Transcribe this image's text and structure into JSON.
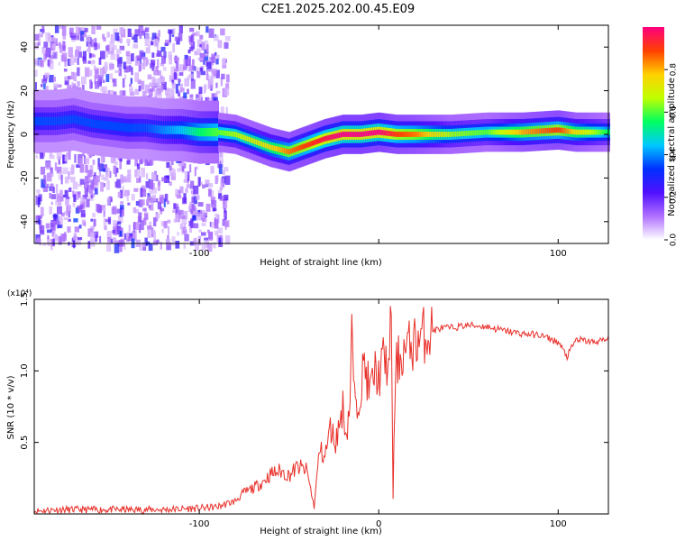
{
  "figure_title": "C2E1.2025.202.00.45.E09",
  "colors": {
    "line": "#e8302a",
    "axis": "#000000",
    "background": "#ffffff",
    "spectrogram_bg": "#ffffff"
  },
  "chart_data": [
    {
      "type": "heatmap",
      "title": "C2E1.2025.202.00.45.E09",
      "xlabel": "Height of straight line (km)",
      "ylabel": "Frequency (Hz)",
      "xlim": [
        -192,
        128
      ],
      "ylim": [
        -50,
        50
      ],
      "x_ticks": [
        -100,
        0,
        100
      ],
      "x_tick_labels": [
        "-100",
        "",
        "100"
      ],
      "y_ticks": [
        -40,
        -20,
        0,
        20,
        40
      ],
      "y_tick_labels": [
        "-40",
        "-20",
        "0",
        "20",
        "40"
      ],
      "colorbar": {
        "label": "Normalized spectral amplitude",
        "range": [
          0,
          1
        ],
        "ticks": [
          0.0,
          0.2,
          0.4,
          0.6,
          0.8
        ],
        "tick_labels": [
          "0.0",
          "0.2",
          "0.4",
          "0.6",
          "0.8"
        ],
        "colormap": [
          "#ffffff",
          "#b070ff",
          "#5010ff",
          "#0030ff",
          "#00c8ff",
          "#00ff60",
          "#c0ff00",
          "#ffd000",
          "#ff4000",
          "#ff0080"
        ]
      },
      "ridge": {
        "x": [
          -190,
          -180,
          -170,
          -160,
          -150,
          -140,
          -130,
          -120,
          -110,
          -100,
          -90,
          -80,
          -70,
          -60,
          -50,
          -40,
          -30,
          -20,
          -10,
          0,
          10,
          20,
          40,
          60,
          80,
          100,
          110,
          120,
          128
        ],
        "frequency": [
          6,
          6,
          7,
          5,
          4,
          3,
          3,
          2,
          2,
          1,
          1,
          0,
          -3,
          -6,
          -8,
          -5,
          -2,
          0,
          0,
          1,
          0,
          0,
          0,
          1,
          1,
          2,
          1,
          1,
          1
        ],
        "amplitude": [
          0.3,
          0.3,
          0.3,
          0.3,
          0.3,
          0.3,
          0.3,
          0.35,
          0.4,
          0.5,
          0.55,
          0.6,
          0.65,
          0.7,
          0.8,
          0.85,
          0.9,
          0.95,
          0.95,
          0.95,
          0.85,
          0.8,
          0.6,
          0.55,
          0.75,
          0.85,
          0.7,
          0.6,
          0.5
        ]
      },
      "noise_region_xlim": [
        -192,
        -85
      ]
    },
    {
      "type": "line",
      "xlabel": "Height of straight line (km)",
      "ylabel": "SNR (10 * v/v)",
      "y_multiplier": "(x10⁴)",
      "xlim": [
        -192,
        128
      ],
      "ylim": [
        0,
        1.5
      ],
      "x_ticks": [
        -100,
        0,
        100
      ],
      "x_tick_labels": [
        "-100",
        "0",
        "100"
      ],
      "y_ticks": [
        0.5,
        1.0,
        1.5
      ],
      "y_tick_labels": [
        "0.5",
        "1.0",
        "1.5"
      ],
      "series": [
        {
          "x": [
            -192,
            -180,
            -160,
            -140,
            -120,
            -100,
            -90,
            -80,
            -75,
            -70,
            -65,
            -60,
            -55,
            -50,
            -45,
            -40,
            -36,
            -33,
            -30,
            -27,
            -24,
            -20,
            -18,
            -16,
            -15,
            -13,
            -10,
            -8,
            -5,
            -2,
            0,
            3,
            6,
            7,
            8,
            9,
            10,
            12,
            15,
            20,
            25,
            30,
            35,
            40,
            50,
            60,
            70,
            80,
            90,
            100,
            105,
            110,
            120,
            128
          ],
          "y": [
            0.02,
            0.03,
            0.03,
            0.03,
            0.03,
            0.04,
            0.05,
            0.09,
            0.15,
            0.18,
            0.22,
            0.28,
            0.3,
            0.27,
            0.33,
            0.3,
            0.05,
            0.45,
            0.4,
            0.6,
            0.5,
            0.75,
            0.55,
            0.8,
            1.25,
            0.7,
            0.9,
            1.05,
            0.85,
            1.0,
            0.95,
            1.1,
            1.0,
            1.5,
            0.12,
            0.8,
            1.05,
            1.1,
            1.15,
            1.2,
            1.25,
            1.28,
            1.3,
            1.3,
            1.32,
            1.31,
            1.28,
            1.26,
            1.25,
            1.2,
            1.1,
            1.22,
            1.2,
            1.22
          ]
        }
      ]
    }
  ]
}
